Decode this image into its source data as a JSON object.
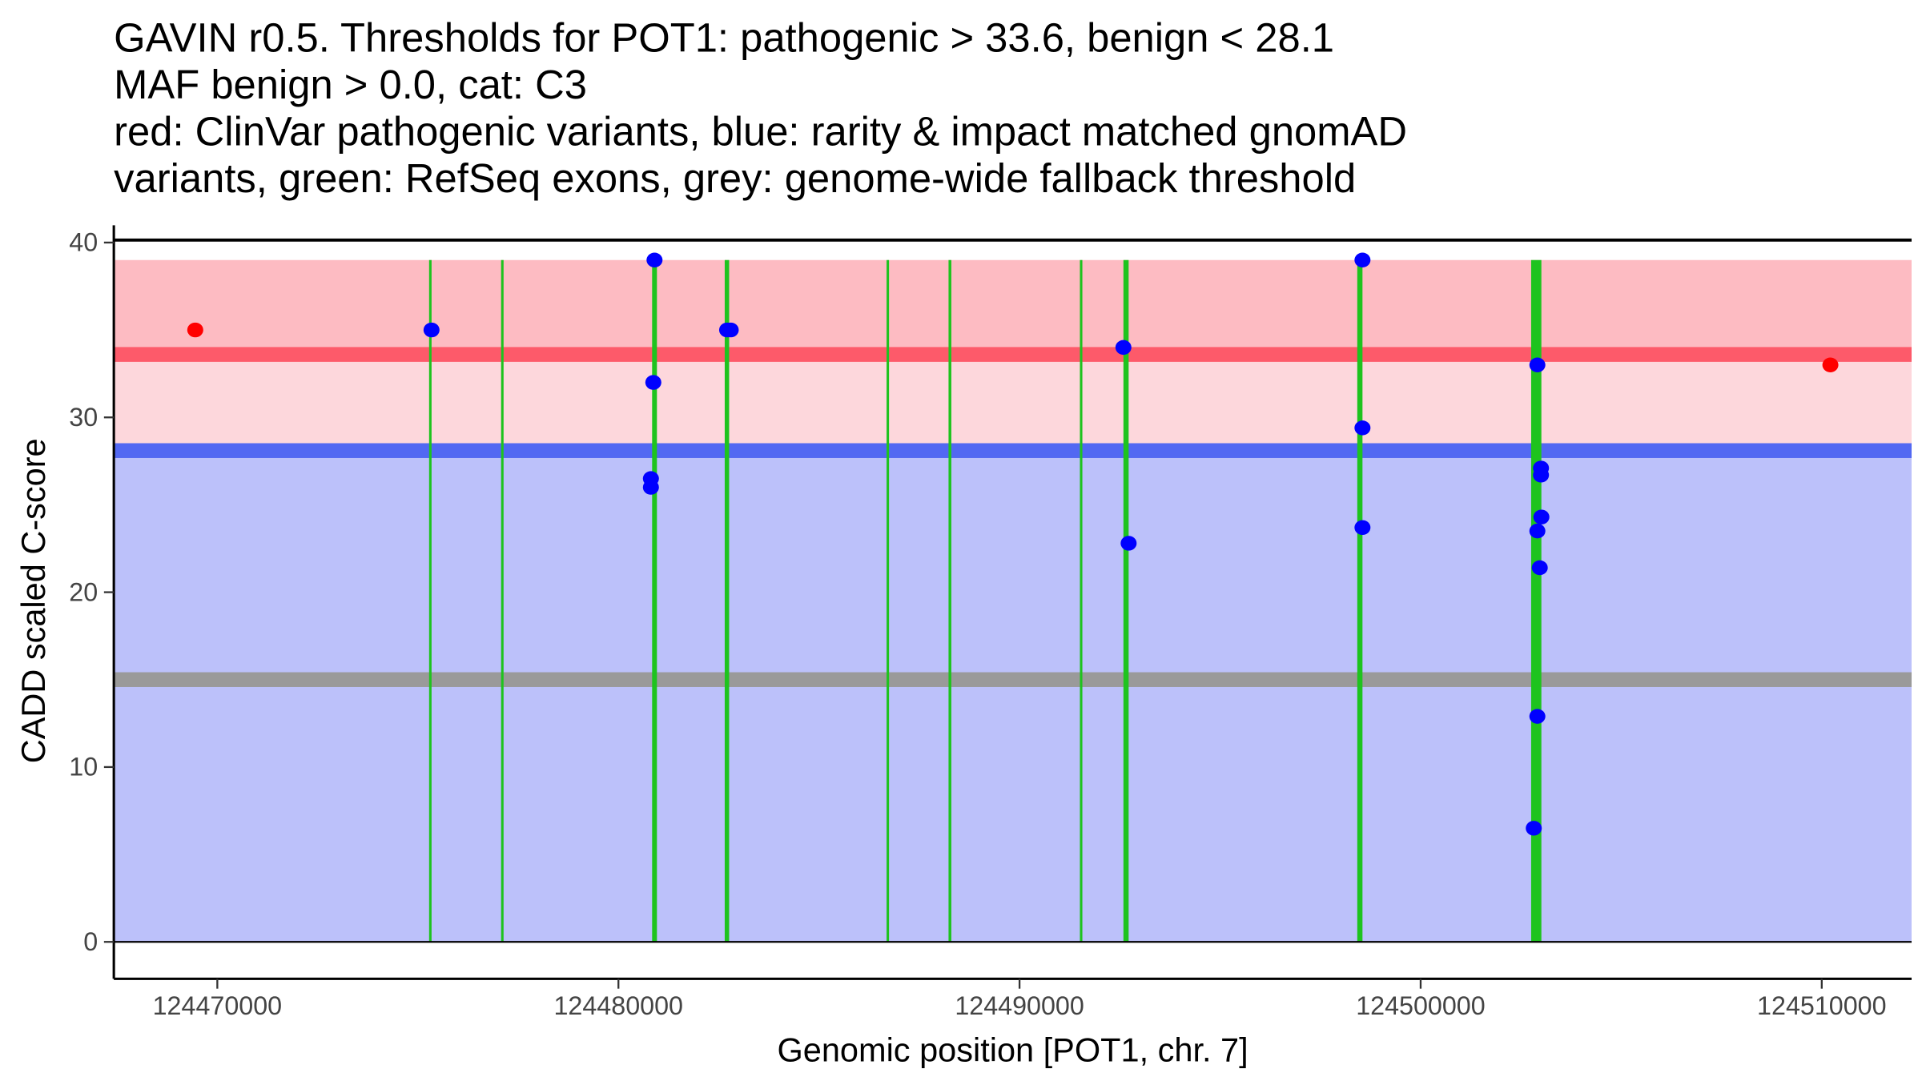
{
  "chart_data": {
    "type": "scatter",
    "title_lines": [
      "GAVIN r0.5. Thresholds for POT1: pathogenic > 33.6, benign < 28.1",
      "MAF benign > 0.0, cat: C3",
      "red: ClinVar pathogenic variants, blue: rarity & impact matched gnomAD",
      "variants, green: RefSeq exons, grey: genome-wide fallback threshold"
    ],
    "xlabel": "Genomic position [POT1, chr. 7]",
    "ylabel": "CADD scaled C-score",
    "xlim": [
      124467420,
      124512240
    ],
    "ylim": [
      -2.1,
      40.1
    ],
    "xticks": [
      124470000,
      124480000,
      124490000,
      124500000,
      124510000
    ],
    "xtick_labels": [
      "124470000",
      "124480000",
      "124490000",
      "124500000",
      "124510000"
    ],
    "yticks": [
      0,
      10,
      20,
      30,
      40
    ],
    "ytick_labels": [
      "0",
      "10",
      "20",
      "30",
      "40"
    ],
    "bands": [
      {
        "name": "pathogenic-high",
        "from": 33.6,
        "to": 39,
        "color": "#fdbbc2"
      },
      {
        "name": "pathogenic-low",
        "from": 28.1,
        "to": 33.6,
        "color": "#fdd7dc"
      },
      {
        "name": "benign",
        "from": 0,
        "to": 28.1,
        "color": "#bcc1fa"
      }
    ],
    "threshold_lines": [
      {
        "name": "pathogenic-threshold",
        "value": 33.6,
        "color": "#fd5a6a"
      },
      {
        "name": "benign-threshold",
        "value": 28.1,
        "color": "#5268f2"
      },
      {
        "name": "fallback-threshold",
        "value": 15,
        "color": "#9a9a9a"
      }
    ],
    "exons": [
      {
        "start": 124475280,
        "end": 124475340
      },
      {
        "start": 124477075,
        "end": 124477105
      },
      {
        "start": 124480840,
        "end": 124480960
      },
      {
        "start": 124482650,
        "end": 124482760
      },
      {
        "start": 124486685,
        "end": 124486715
      },
      {
        "start": 124488230,
        "end": 124488300
      },
      {
        "start": 124491505,
        "end": 124491535
      },
      {
        "start": 124492590,
        "end": 124492720
      },
      {
        "start": 124498420,
        "end": 124498550
      },
      {
        "start": 124502755,
        "end": 124503010
      }
    ],
    "exon_color": "#1ec31e",
    "series": [
      {
        "name": "ClinVar pathogenic",
        "color": "#ff0000",
        "points": [
          [
            124469450,
            35.0
          ],
          [
            124510215,
            33.0
          ]
        ]
      },
      {
        "name": "gnomAD matched",
        "color": "#0000ff",
        "points": [
          [
            124475340,
            35.0
          ],
          [
            124480900,
            39.0
          ],
          [
            124480870,
            32.0
          ],
          [
            124480810,
            26.5
          ],
          [
            124480810,
            26.0
          ],
          [
            124482710,
            35.0
          ],
          [
            124482800,
            35.0
          ],
          [
            124492590,
            34.0
          ],
          [
            124492720,
            22.8
          ],
          [
            124498550,
            39.0
          ],
          [
            124498550,
            29.4
          ],
          [
            124498550,
            23.7
          ],
          [
            124502910,
            33.0
          ],
          [
            124503000,
            27.1
          ],
          [
            124503000,
            26.7
          ],
          [
            124503010,
            24.3
          ],
          [
            124502910,
            23.5
          ],
          [
            124502970,
            21.4
          ],
          [
            124502910,
            12.9
          ],
          [
            124502820,
            6.5
          ]
        ]
      }
    ]
  }
}
